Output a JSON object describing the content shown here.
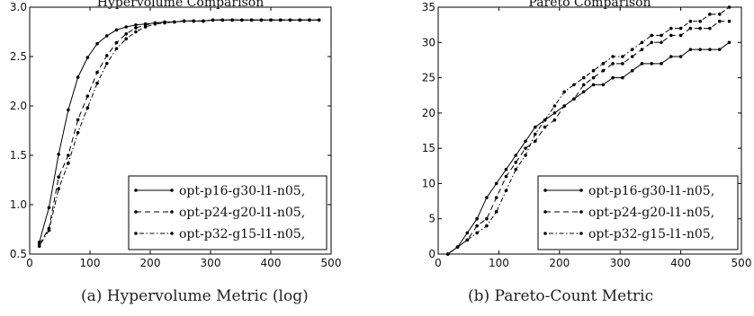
{
  "chart_data": [
    {
      "type": "line",
      "title": "Hypervolume Comparison",
      "caption": "(a) Hypervolume Metric (log)",
      "xlabel": "",
      "ylabel": "",
      "xlim": [
        0,
        500
      ],
      "ylim": [
        0.5,
        3.0
      ],
      "xticks": [
        0,
        100,
        200,
        300,
        400,
        500
      ],
      "yticks": [
        0.5,
        1.0,
        1.5,
        2.0,
        2.5,
        3.0
      ],
      "legend_position": "lower-right",
      "grid": false,
      "x": [
        16,
        32,
        48,
        64,
        80,
        96,
        112,
        128,
        144,
        160,
        176,
        192,
        208,
        224,
        240,
        256,
        272,
        288,
        304,
        320,
        336,
        352,
        368,
        384,
        400,
        416,
        432,
        448,
        464,
        480
      ],
      "series": [
        {
          "name": "opt-p16-g30-l1-n05,",
          "style": "solid",
          "values": [
            0.62,
            0.97,
            1.51,
            1.96,
            2.29,
            2.49,
            2.63,
            2.71,
            2.77,
            2.8,
            2.82,
            2.83,
            2.84,
            2.85,
            2.85,
            2.86,
            2.86,
            2.86,
            2.87,
            2.87,
            2.87,
            2.87,
            2.87,
            2.87,
            2.87,
            2.87,
            2.87,
            2.87,
            2.87,
            2.87
          ]
        },
        {
          "name": "opt-p24-g20-l1-n05,",
          "style": "dashed",
          "values": [
            0.6,
            0.76,
            1.28,
            1.5,
            1.86,
            2.1,
            2.34,
            2.51,
            2.64,
            2.73,
            2.79,
            2.82,
            2.84,
            2.85,
            2.85,
            2.86,
            2.86,
            2.86,
            2.87,
            2.87,
            2.87,
            2.87,
            2.87,
            2.87,
            2.87,
            2.87,
            2.87,
            2.87,
            2.87,
            2.87
          ]
        },
        {
          "name": "opt-p32-g15-l1-n05,",
          "style": "dashdot",
          "values": [
            0.58,
            0.74,
            1.16,
            1.42,
            1.73,
            1.98,
            2.23,
            2.43,
            2.58,
            2.68,
            2.75,
            2.8,
            2.83,
            2.84,
            2.85,
            2.86,
            2.86,
            2.86,
            2.87,
            2.87,
            2.87,
            2.87,
            2.87,
            2.87,
            2.87,
            2.87,
            2.87,
            2.87,
            2.87,
            2.87
          ]
        }
      ]
    },
    {
      "type": "line",
      "title": "Pareto Comparison",
      "caption": "(b) Pareto-Count Metric",
      "xlabel": "",
      "ylabel": "",
      "xlim": [
        0,
        500
      ],
      "ylim": [
        0,
        35
      ],
      "xticks": [
        0,
        100,
        200,
        300,
        400,
        500
      ],
      "yticks": [
        0,
        5,
        10,
        15,
        20,
        25,
        30,
        35
      ],
      "legend_position": "lower-right",
      "grid": false,
      "x": [
        16,
        32,
        48,
        64,
        80,
        96,
        112,
        128,
        144,
        160,
        176,
        192,
        208,
        224,
        240,
        256,
        272,
        288,
        304,
        320,
        336,
        352,
        368,
        384,
        400,
        416,
        432,
        448,
        464,
        480
      ],
      "series": [
        {
          "name": "opt-p16-g30-l1-n05,",
          "style": "solid",
          "values": [
            0,
            1,
            3,
            5,
            8,
            10,
            12,
            14,
            16,
            18,
            19,
            20,
            21,
            22,
            23,
            24,
            24,
            25,
            25,
            26,
            27,
            27,
            27,
            28,
            28,
            29,
            29,
            29,
            29,
            30
          ]
        },
        {
          "name": "opt-p24-g20-l1-n05,",
          "style": "dashed",
          "values": [
            0,
            1,
            2,
            4,
            5,
            8,
            11,
            13,
            15,
            16,
            18,
            19,
            21,
            22,
            24,
            25,
            26,
            27,
            27,
            28,
            29,
            30,
            30,
            31,
            31,
            32,
            32,
            32,
            33,
            33
          ]
        },
        {
          "name": "opt-p32-g15-l1-n05,",
          "style": "dashdot",
          "values": [
            0,
            1,
            2,
            3,
            4,
            6,
            9,
            12,
            14,
            17,
            19,
            21,
            23,
            24,
            25,
            26,
            27,
            28,
            28,
            29,
            30,
            31,
            31,
            32,
            32,
            33,
            33,
            34,
            34,
            35
          ]
        }
      ]
    }
  ]
}
